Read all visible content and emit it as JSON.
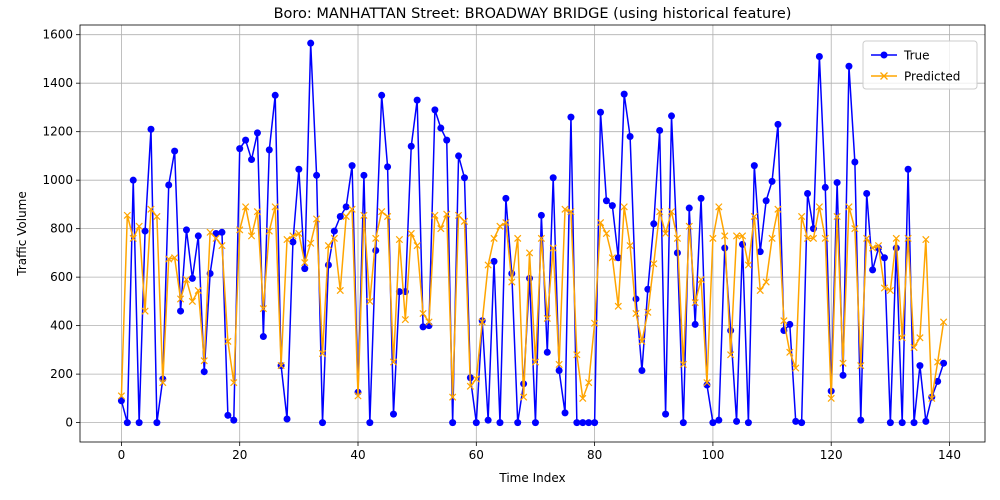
{
  "chart_data": {
    "type": "line",
    "title": "Boro: MANHATTAN Street: BROADWAY BRIDGE (using historical feature)",
    "xlabel": "Time Index",
    "ylabel": "Traffic Volume",
    "xlim": [
      -7,
      146
    ],
    "ylim": [
      -80,
      1640
    ],
    "xticks": [
      0,
      20,
      40,
      60,
      80,
      100,
      120,
      140
    ],
    "yticks": [
      0,
      200,
      400,
      600,
      800,
      1000,
      1200,
      1400,
      1600
    ],
    "grid": true,
    "legend": {
      "placement": "top-right",
      "entries": [
        "True",
        "Predicted"
      ]
    },
    "colors": {
      "True": "#0000ff",
      "Predicted": "#ffa500"
    },
    "markers": {
      "True": "circle",
      "Predicted": "x"
    },
    "x": [
      0,
      1,
      2,
      3,
      4,
      5,
      6,
      7,
      8,
      9,
      10,
      11,
      12,
      13,
      14,
      15,
      16,
      17,
      18,
      19,
      20,
      21,
      22,
      23,
      24,
      25,
      26,
      27,
      28,
      29,
      30,
      31,
      32,
      33,
      34,
      35,
      36,
      37,
      38,
      39,
      40,
      41,
      42,
      43,
      44,
      45,
      46,
      47,
      48,
      49,
      50,
      51,
      52,
      53,
      54,
      55,
      56,
      57,
      58,
      59,
      60,
      61,
      62,
      63,
      64,
      65,
      66,
      67,
      68,
      69,
      70,
      71,
      72,
      73,
      74,
      75,
      76,
      77,
      78,
      79,
      80,
      81,
      82,
      83,
      84,
      85,
      86,
      87,
      88,
      89,
      90,
      91,
      92,
      93,
      94,
      95,
      96,
      97,
      98,
      99,
      100,
      101,
      102,
      103,
      104,
      105,
      106,
      107,
      108,
      109,
      110,
      111,
      112,
      113,
      114,
      115,
      116,
      117,
      118,
      119,
      120,
      121,
      122,
      123,
      124,
      125,
      126,
      127,
      128,
      129,
      130,
      131,
      132,
      133,
      134,
      135,
      136,
      137,
      138,
      139
    ],
    "series": [
      {
        "name": "True",
        "values": [
          90,
          0,
          1000,
          0,
          790,
          1210,
          0,
          180,
          980,
          1120,
          460,
          795,
          595,
          770,
          210,
          615,
          780,
          785,
          30,
          10,
          1130,
          1165,
          1085,
          1195,
          355,
          1125,
          1350,
          235,
          15,
          745,
          1045,
          635,
          1565,
          1020,
          0,
          650,
          790,
          850,
          890,
          1060,
          125,
          1020,
          0,
          710,
          1350,
          1055,
          35,
          540,
          540,
          1140,
          1330,
          395,
          400,
          1290,
          1215,
          1165,
          0,
          1100,
          1010,
          185,
          0,
          420,
          10,
          665,
          0,
          925,
          615,
          0,
          160,
          595,
          0,
          855,
          290,
          1010,
          215,
          40,
          1260,
          0,
          0,
          0,
          0,
          1280,
          915,
          895,
          680,
          1355,
          1180,
          510,
          215,
          550,
          820,
          1205,
          35,
          1265,
          700,
          0,
          885,
          405,
          925,
          155,
          0,
          10,
          720,
          380,
          5,
          735,
          0,
          1060,
          705,
          915,
          995,
          1230,
          380,
          405,
          5,
          0,
          945,
          800,
          1510,
          970,
          130,
          990,
          195,
          1470,
          1075,
          10,
          945,
          630,
          720,
          680,
          0,
          720,
          0,
          1045,
          0,
          235,
          5,
          105,
          170,
          245
        ]
      },
      {
        "name": "Predicted",
        "values": [
          110,
          855,
          760,
          810,
          460,
          880,
          850,
          165,
          675,
          680,
          510,
          590,
          500,
          545,
          255,
          785,
          760,
          730,
          335,
          165,
          795,
          890,
          770,
          870,
          470,
          790,
          890,
          235,
          755,
          770,
          780,
          660,
          740,
          840,
          285,
          730,
          760,
          545,
          850,
          880,
          110,
          855,
          500,
          760,
          870,
          850,
          250,
          755,
          425,
          780,
          730,
          450,
          415,
          855,
          800,
          860,
          105,
          855,
          830,
          150,
          180,
          415,
          650,
          760,
          810,
          825,
          580,
          760,
          105,
          700,
          250,
          760,
          430,
          720,
          240,
          880,
          870,
          280,
          100,
          165,
          410,
          825,
          780,
          680,
          480,
          890,
          730,
          450,
          335,
          455,
          655,
          870,
          780,
          870,
          760,
          240,
          810,
          495,
          590,
          165,
          760,
          890,
          770,
          280,
          770,
          770,
          650,
          850,
          545,
          580,
          760,
          880,
          420,
          290,
          225,
          850,
          760,
          760,
          890,
          760,
          100,
          850,
          245,
          890,
          800,
          235,
          760,
          720,
          730,
          555,
          545,
          760,
          350,
          760,
          310,
          350,
          755,
          100,
          250,
          415
        ]
      }
    ]
  }
}
